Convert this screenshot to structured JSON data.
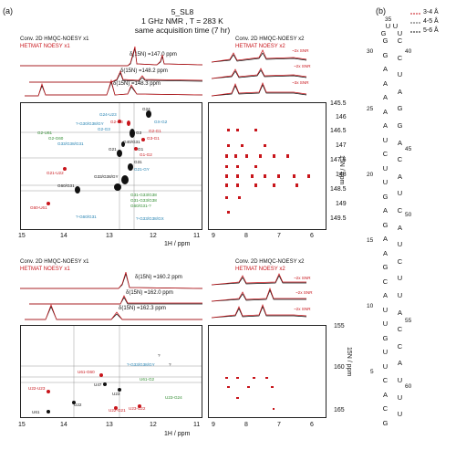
{
  "panel_a_label": "(a)",
  "panel_b_label": "(b)",
  "header": {
    "sample": "5_SL8",
    "conditions": "1 GHz NMR , T = 283 K",
    "acq": "same acquisition time (7 hr)"
  },
  "top": {
    "left_title_black": "Conv. 2D HMQC-NOESY x1",
    "left_title_red": "HETMAT NOESY x1",
    "right_title_black": "Conv. 2D HMQC-NOESY x2",
    "right_title_red": "HETMAT NOESY x2",
    "slices": [
      "δ(15N) =147.0 ppm",
      "δ(15N) =148.2 ppm",
      "δ(15N) =148.3 ppm"
    ],
    "snr": [
      "~2x SNR",
      "~2x SNR",
      "~3x SNR"
    ],
    "y_ticks": [
      "145.5",
      "146",
      "146.5",
      "147",
      "147.5",
      "148",
      "148.5",
      "149",
      "149.5"
    ],
    "x_ticks_left": [
      "15",
      "14",
      "13",
      "12",
      "11"
    ],
    "x_ticks_right": [
      "9",
      "8",
      "7",
      "6"
    ],
    "y_label": "15N / ppm",
    "x_label": "1H / ppm",
    "labels_black": [
      "G24",
      "G3",
      "G21",
      "G31",
      "G33/G38/GY",
      "G40/G31",
      "G1",
      "G60/G31"
    ],
    "labels_red": [
      "G2-G3",
      "G3-G1",
      "G1-G2",
      "G21-U22",
      "G60-U61",
      "G2-G1"
    ],
    "labels_blue": [
      "G24-U23",
      "?-G30/G38/GY",
      "G2-G3",
      "G33/G38/G31",
      "GX-G2",
      "G21-GY",
      "?-G60/G31",
      "?-G33/G38/GX"
    ],
    "labels_green": [
      "G2-U61",
      "G2-G60",
      "G31-G33/G38",
      "G31-G33/G38",
      "G60/G31-?"
    ]
  },
  "bottom": {
    "left_title_black": "Conv. 2D HMQC-NOESY x1",
    "left_title_red": "HETMAT NOESY x1",
    "right_title_black": "Conv. 2D HMQC-NOESY x2",
    "right_title_red": "HETMAT NOESY x2",
    "slices": [
      "δ(15N) =160.2 ppm",
      "δ(15N) =162.0 ppm",
      "δ(15N) =162.3 ppm"
    ],
    "snr": [
      "~2x SNR",
      "~2x SNR",
      "~2x SNR"
    ],
    "y_ticks": [
      "155",
      "160",
      "165"
    ],
    "x_ticks_left": [
      "15",
      "14",
      "13",
      "12",
      "11"
    ],
    "x_ticks_right": [
      "9",
      "8",
      "7",
      "6"
    ],
    "y_label": "15N / ppm",
    "x_label": "1H / ppm",
    "labels_black": [
      "U22",
      "U61",
      "U47",
      "U23"
    ],
    "labels_red": [
      "U22-U23",
      "U61-G60",
      "U22-G21",
      "U23-U22"
    ],
    "labels_blue": [
      "?-G33/G38/GY"
    ],
    "labels_green": [
      "U61-G2",
      "U23-G24"
    ],
    "marks": [
      "?",
      "?"
    ]
  },
  "legend": [
    "3-4 Å",
    "4-5 Å",
    "5-6 Å"
  ],
  "legend_colors": [
    "#c8151b",
    "#555555",
    "#111111"
  ],
  "structure": {
    "loop": [
      "U",
      "U",
      "G",
      "U"
    ],
    "left": [
      "G",
      "G",
      "A",
      "A",
      "A",
      "A",
      "A",
      "U",
      "C",
      "U",
      "U",
      "G",
      "A",
      "G",
      "A",
      "A",
      "G",
      "C",
      "A",
      "U",
      "U",
      "G",
      "U",
      "U",
      "C",
      "A",
      "C",
      "G"
    ],
    "right": [
      "C",
      "C",
      "U",
      "A",
      "G",
      "G",
      "A",
      "C",
      "A",
      "U",
      "C",
      "A",
      "U",
      "C",
      "U",
      "U",
      "A",
      "C",
      "C",
      "A",
      "U",
      "U",
      "U"
    ],
    "numbers": [
      "35",
      "30",
      "40",
      "25",
      "45",
      "20",
      "50",
      "15",
      "10",
      "55",
      "5",
      "60"
    ]
  }
}
